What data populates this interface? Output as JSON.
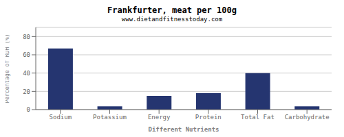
{
  "chart_data": {
    "type": "bar",
    "title": "Frankfurter, meat per 100g",
    "subtitle": "www.dietandfitnesstoday.com",
    "xlabel": "Different Nutrients",
    "ylabel": "Percentage of RDH (%)",
    "categories": [
      "Sodium",
      "Potassium",
      "Energy",
      "Protein",
      "Total Fat",
      "Carbohydrate"
    ],
    "values": [
      67,
      3.5,
      15,
      18,
      40,
      3.5
    ],
    "color": "#253570",
    "ylim": [
      0,
      90
    ],
    "yticks": [
      0,
      20,
      40,
      60,
      80
    ],
    "grid": true
  }
}
